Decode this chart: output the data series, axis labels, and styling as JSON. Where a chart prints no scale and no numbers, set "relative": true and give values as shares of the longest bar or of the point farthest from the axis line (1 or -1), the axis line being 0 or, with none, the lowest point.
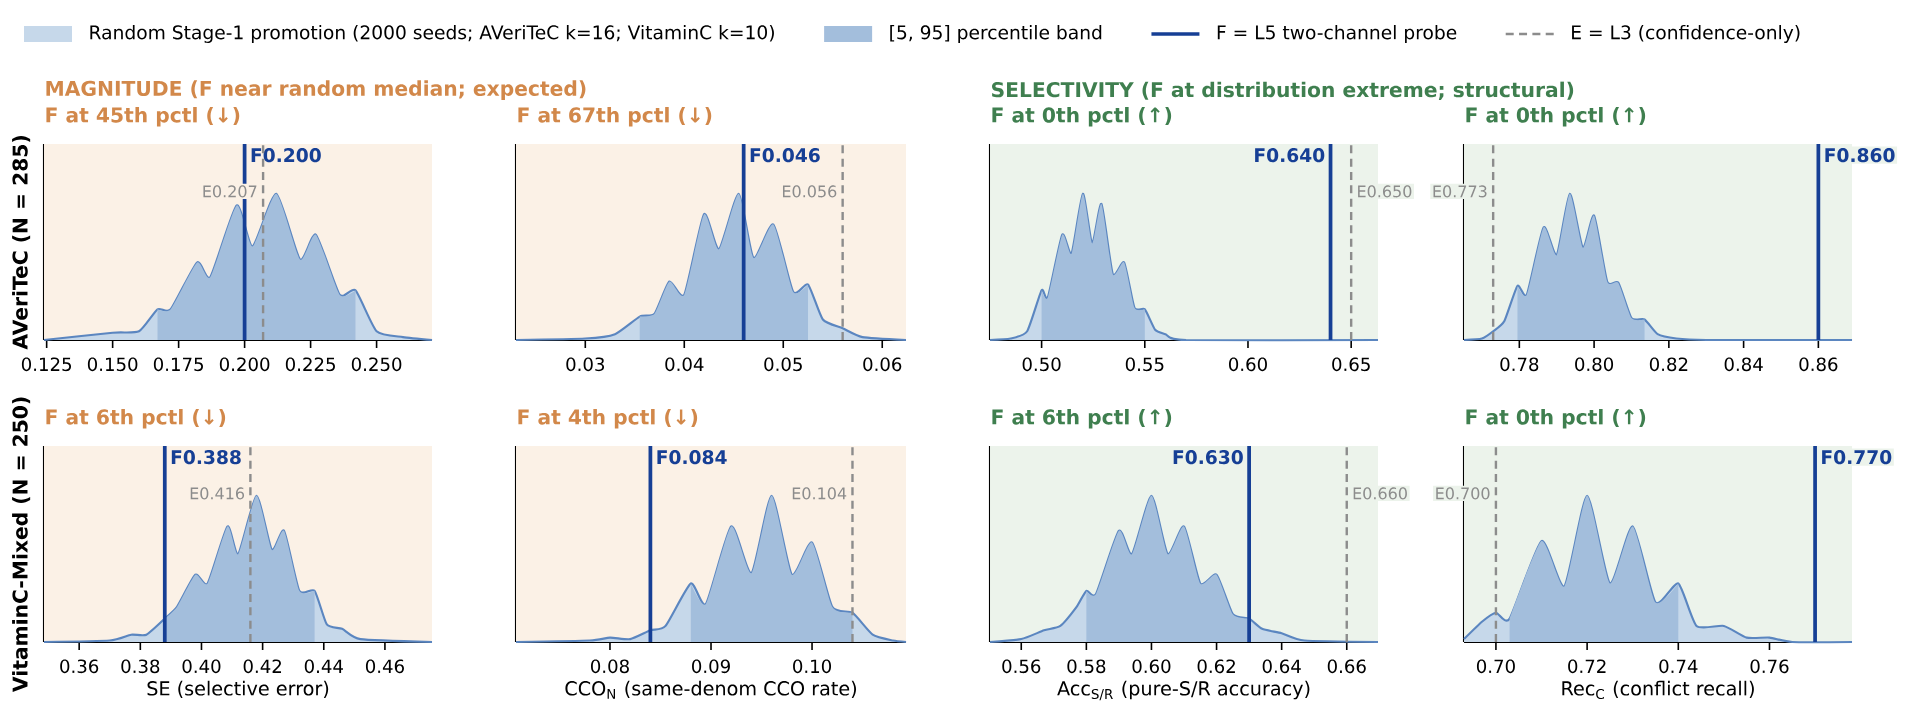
{
  "chart_data": [
    {
      "type": "area",
      "relative": true,
      "title": "F at 45th pctl (↓)",
      "subtitle": "MAGNITUDE  (F near random median; expected)",
      "ylabel": "AVeriTeC (N = 285)",
      "legend": "top",
      "annotations": [
        "F = L5 two-channel probe",
        "E = L3 (confidence-only)"
      ],
      "xlim": [
        0.124,
        0.271
      ],
      "xticks": [
        0.125,
        {
          "value": 0.15,
          "label": "0.150"
        },
        0.175,
        {
          "value": 0.2,
          "label": "0.200"
        },
        0.225,
        {
          "value": 0.25,
          "label": "0.250"
        }
      ],
      "bands": [
        {
          "axis": "x",
          "from": 0.124,
          "to": 0.271,
          "color": "#fbf1e6"
        }
      ],
      "series": [
        {
          "name": "Random Stage-1 promotion (2000 seeds; AVeriTeC k=16; VitaminC k=10)",
          "color": "#c6d8ea",
          "x": [
            0.124,
            0.15,
            0.16,
            0.167,
            0.172,
            0.182,
            0.187,
            0.197,
            0.203,
            0.212,
            0.221,
            0.227,
            0.236,
            0.242,
            0.25,
            0.26,
            0.271
          ],
          "values": [
            0,
            0.05,
            0.06,
            0.21,
            0.21,
            0.53,
            0.43,
            0.92,
            0.64,
            1.0,
            0.55,
            0.72,
            0.31,
            0.34,
            0.06,
            0.02,
            0
          ]
        },
        {
          "name": "[5, 95] percentile band",
          "color": "#a3bedc",
          "x": [
            0.167,
            0.172,
            0.182,
            0.187,
            0.197,
            0.203,
            0.212,
            0.221,
            0.227,
            0.236,
            0.242
          ],
          "values": [
            0.21,
            0.21,
            0.53,
            0.43,
            0.92,
            0.64,
            1.0,
            0.55,
            0.72,
            0.31,
            0.34
          ]
        }
      ],
      "ref_lines": [
        {
          "axis": "x",
          "value": 0.2,
          "label": "F0.200",
          "color": "#163f95",
          "line_style": "solid"
        },
        {
          "axis": "x",
          "value": 0.207,
          "label": "E0.207",
          "color": "#8c8c8c",
          "line_style": "dashed"
        }
      ]
    },
    {
      "type": "area",
      "relative": true,
      "title": "F at 67th pctl (↓)",
      "xlim": [
        0.023,
        0.0624
      ],
      "xticks": [
        0.03,
        0.04,
        0.05,
        0.06
      ],
      "bands": [
        {
          "axis": "x",
          "from": 0.023,
          "to": 0.0624,
          "color": "#fbf1e6"
        }
      ],
      "series": [
        {
          "color": "#c6d8ea",
          "x": [
            0.023,
            0.03,
            0.033,
            0.0355,
            0.037,
            0.0385,
            0.04,
            0.042,
            0.0435,
            0.0455,
            0.047,
            0.049,
            0.051,
            0.0525,
            0.054,
            0.056,
            0.058,
            0.0624
          ],
          "values": [
            0,
            0.01,
            0.04,
            0.16,
            0.18,
            0.4,
            0.31,
            0.86,
            0.62,
            1.0,
            0.56,
            0.79,
            0.33,
            0.38,
            0.14,
            0.08,
            0.02,
            0
          ]
        },
        {
          "color": "#a3bedc",
          "x": [
            0.0355,
            0.037,
            0.0385,
            0.04,
            0.042,
            0.0435,
            0.0455,
            0.047,
            0.049,
            0.051,
            0.0525
          ],
          "values": [
            0.16,
            0.18,
            0.4,
            0.31,
            0.86,
            0.62,
            1.0,
            0.56,
            0.79,
            0.33,
            0.38
          ]
        }
      ],
      "ref_lines": [
        {
          "axis": "x",
          "value": 0.046,
          "label": "F0.046",
          "color": "#163f95",
          "line_style": "solid"
        },
        {
          "axis": "x",
          "value": 0.056,
          "label": "E0.056",
          "color": "#8c8c8c",
          "line_style": "dashed"
        }
      ]
    },
    {
      "type": "area",
      "relative": true,
      "title": "F at 0th pctl (↑)",
      "subtitle": "SELECTIVITY  (F at distribution extreme; structural)",
      "xlim": [
        0.475,
        0.663
      ],
      "xticks": [
        {
          "value": 0.5,
          "label": "0.50"
        },
        0.55,
        {
          "value": 0.6,
          "label": "0.60"
        },
        0.65
      ],
      "bands": [
        {
          "axis": "x",
          "from": 0.475,
          "to": 0.663,
          "color": "#ecf3eb"
        }
      ],
      "series": [
        {
          "color": "#c6d8ea",
          "x": [
            0.475,
            0.485,
            0.493,
            0.5,
            0.503,
            0.51,
            0.5145,
            0.52,
            0.5245,
            0.529,
            0.5345,
            0.54,
            0.545,
            0.55,
            0.555,
            0.56,
            0.57,
            0.663
          ],
          "values": [
            0,
            0.01,
            0.06,
            0.34,
            0.29,
            0.72,
            0.59,
            1.0,
            0.66,
            0.93,
            0.45,
            0.53,
            0.22,
            0.21,
            0.07,
            0.04,
            0,
            0
          ]
        },
        {
          "color": "#a3bedc",
          "x": [
            0.5,
            0.503,
            0.51,
            0.5145,
            0.52,
            0.5245,
            0.529,
            0.5345,
            0.54,
            0.545,
            0.55
          ],
          "values": [
            0.34,
            0.29,
            0.72,
            0.59,
            1.0,
            0.66,
            0.93,
            0.45,
            0.53,
            0.22,
            0.21
          ]
        }
      ],
      "ref_lines": [
        {
          "axis": "x",
          "value": 0.64,
          "label": "F0.640",
          "color": "#163f95",
          "line_style": "solid"
        },
        {
          "axis": "x",
          "value": 0.65,
          "label": "E0.650",
          "color": "#8c8c8c",
          "line_style": "dashed"
        }
      ]
    },
    {
      "type": "area",
      "relative": true,
      "title": "F at 0th pctl (↑)",
      "xlim": [
        0.7652,
        0.869
      ],
      "xticks": [
        0.78,
        {
          "value": 0.8,
          "label": "0.80"
        },
        0.82,
        0.84,
        0.86
      ],
      "bands": [
        {
          "axis": "x",
          "from": 0.7652,
          "to": 0.869,
          "color": "#ecf3eb"
        }
      ],
      "series": [
        {
          "color": "#c6d8ea",
          "x": [
            0.7652,
            0.77,
            0.773,
            0.776,
            0.7795,
            0.782,
            0.7865,
            0.79,
            0.7935,
            0.797,
            0.8,
            0.8035,
            0.8065,
            0.81,
            0.8135,
            0.817,
            0.822,
            0.83,
            0.869
          ],
          "values": [
            0,
            0.01,
            0.06,
            0.13,
            0.37,
            0.31,
            0.77,
            0.58,
            1.0,
            0.63,
            0.85,
            0.4,
            0.39,
            0.15,
            0.14,
            0.04,
            0.01,
            0,
            0
          ]
        },
        {
          "color": "#a3bedc",
          "x": [
            0.7795,
            0.782,
            0.7865,
            0.79,
            0.7935,
            0.797,
            0.8,
            0.8035,
            0.8065,
            0.81,
            0.8135
          ],
          "values": [
            0.37,
            0.31,
            0.77,
            0.58,
            1.0,
            0.63,
            0.85,
            0.4,
            0.39,
            0.15,
            0.14
          ]
        }
      ],
      "ref_lines": [
        {
          "axis": "x",
          "value": 0.86,
          "label": "F0.860",
          "color": "#163f95",
          "line_style": "solid"
        },
        {
          "axis": "x",
          "value": 0.773,
          "label": "E0.773",
          "color": "#8c8c8c",
          "line_style": "dashed"
        }
      ]
    },
    {
      "type": "area",
      "relative": true,
      "title": "F at 6th pctl (↓)",
      "ylabel": "VitaminC-Mixed (N = 250)",
      "xlabel": "SE  (selective error)",
      "xlim": [
        0.3485,
        0.4754
      ],
      "xticks": [
        0.36,
        0.38,
        {
          "value": 0.4,
          "label": "0.40"
        },
        0.42,
        0.44,
        0.46
      ],
      "bands": [
        {
          "axis": "x",
          "from": 0.3485,
          "to": 0.4754,
          "color": "#fbf1e6"
        }
      ],
      "series": [
        {
          "color": "#c6d8ea",
          "x": [
            0.3485,
            0.37,
            0.377,
            0.382,
            0.388,
            0.392,
            0.398,
            0.402,
            0.4085,
            0.412,
            0.418,
            0.423,
            0.427,
            0.432,
            0.437,
            0.441,
            0.446,
            0.452,
            0.4754
          ],
          "values": [
            0,
            0.01,
            0.05,
            0.05,
            0.16,
            0.24,
            0.46,
            0.4,
            0.79,
            0.6,
            1.0,
            0.63,
            0.76,
            0.35,
            0.35,
            0.12,
            0.09,
            0.02,
            0
          ]
        },
        {
          "color": "#a3bedc",
          "x": [
            0.388,
            0.392,
            0.398,
            0.402,
            0.4085,
            0.412,
            0.418,
            0.423,
            0.427,
            0.432,
            0.437
          ],
          "values": [
            0.16,
            0.24,
            0.46,
            0.4,
            0.79,
            0.6,
            1.0,
            0.63,
            0.76,
            0.35,
            0.35
          ]
        }
      ],
      "ref_lines": [
        {
          "axis": "x",
          "value": 0.388,
          "label": "F0.388",
          "color": "#163f95",
          "line_style": "solid"
        },
        {
          "axis": "x",
          "value": 0.416,
          "label": "E0.416",
          "color": "#8c8c8c",
          "line_style": "dashed"
        }
      ]
    },
    {
      "type": "area",
      "relative": true,
      "title": "F at 4th pctl (↓)",
      "xlabel": "CCO$_{N}$  (same-denom CCO rate)",
      "xlim": [
        0.0707,
        0.1093
      ],
      "xticks": [
        0.08,
        0.09,
        {
          "value": 0.1,
          "label": "0.10"
        }
      ],
      "bands": [
        {
          "axis": "x",
          "from": 0.0707,
          "to": 0.1093,
          "color": "#fbf1e6"
        }
      ],
      "series": [
        {
          "color": "#c6d8ea",
          "x": [
            0.0707,
            0.078,
            0.08,
            0.082,
            0.084,
            0.0855,
            0.088,
            0.0895,
            0.092,
            0.094,
            0.096,
            0.098,
            0.1,
            0.102,
            0.104,
            0.106,
            0.108,
            0.1093
          ],
          "values": [
            0,
            0.01,
            0.03,
            0.02,
            0.08,
            0.11,
            0.4,
            0.26,
            0.79,
            0.47,
            1.0,
            0.46,
            0.68,
            0.24,
            0.2,
            0.05,
            0.01,
            0
          ]
        },
        {
          "color": "#a3bedc",
          "x": [
            0.088,
            0.0895,
            0.092,
            0.094,
            0.096,
            0.098,
            0.1,
            0.102,
            0.104
          ],
          "values": [
            0.4,
            0.26,
            0.79,
            0.47,
            1.0,
            0.46,
            0.68,
            0.24,
            0.2
          ]
        }
      ],
      "ref_lines": [
        {
          "axis": "x",
          "value": 0.084,
          "label": "F0.084",
          "color": "#163f95",
          "line_style": "solid"
        },
        {
          "axis": "x",
          "value": 0.104,
          "label": "E0.104",
          "color": "#8c8c8c",
          "line_style": "dashed"
        }
      ]
    },
    {
      "type": "area",
      "relative": true,
      "title": "F at 6th pctl (↑)",
      "xlabel": "Acc$_{S/R}$  (pure-S/R accuracy)",
      "xlim": [
        0.5504,
        0.6696
      ],
      "xticks": [
        0.56,
        0.58,
        {
          "value": 0.6,
          "label": "0.60"
        },
        0.62,
        0.64,
        0.66
      ],
      "bands": [
        {
          "axis": "x",
          "from": 0.5504,
          "to": 0.6696,
          "color": "#ecf3eb"
        }
      ],
      "series": [
        {
          "color": "#c6d8ea",
          "x": [
            0.5504,
            0.56,
            0.567,
            0.572,
            0.577,
            0.58,
            0.583,
            0.59,
            0.594,
            0.6,
            0.605,
            0.61,
            0.615,
            0.62,
            0.625,
            0.63,
            0.634,
            0.64,
            0.647,
            0.6696
          ],
          "values": [
            0,
            0.02,
            0.08,
            0.11,
            0.24,
            0.35,
            0.33,
            0.76,
            0.6,
            1.0,
            0.6,
            0.79,
            0.4,
            0.46,
            0.19,
            0.16,
            0.09,
            0.06,
            0.01,
            0
          ]
        },
        {
          "color": "#a3bedc",
          "x": [
            0.58,
            0.583,
            0.59,
            0.594,
            0.6,
            0.605,
            0.61,
            0.615,
            0.62,
            0.625,
            0.63
          ],
          "values": [
            0.35,
            0.33,
            0.76,
            0.6,
            1.0,
            0.6,
            0.79,
            0.4,
            0.46,
            0.19,
            0.16
          ]
        }
      ],
      "ref_lines": [
        {
          "axis": "x",
          "value": 0.63,
          "label": "F0.630",
          "color": "#163f95",
          "line_style": "solid"
        },
        {
          "axis": "x",
          "value": 0.66,
          "label": "E0.660",
          "color": "#8c8c8c",
          "line_style": "dashed"
        }
      ]
    },
    {
      "type": "area",
      "relative": true,
      "title": "F at 0th pctl (↑)",
      "xlabel": "Rec$_{C}$  (conflict recall)",
      "xlim": [
        0.693,
        0.7781
      ],
      "xticks": [
        {
          "value": 0.7,
          "label": "0.70"
        },
        0.72,
        0.74,
        0.76
      ],
      "bands": [
        {
          "axis": "x",
          "from": 0.693,
          "to": 0.7781,
          "color": "#ecf3eb"
        }
      ],
      "series": [
        {
          "color": "#c6d8ea",
          "x": [
            0.693,
            0.697,
            0.7,
            0.703,
            0.71,
            0.715,
            0.72,
            0.725,
            0.73,
            0.735,
            0.74,
            0.744,
            0.75,
            0.755,
            0.76,
            0.765,
            0.7781
          ],
          "values": [
            0.02,
            0.14,
            0.2,
            0.16,
            0.69,
            0.38,
            1.0,
            0.4,
            0.79,
            0.27,
            0.4,
            0.11,
            0.11,
            0.03,
            0.03,
            0,
            0
          ]
        },
        {
          "color": "#a3bedc",
          "x": [
            0.703,
            0.71,
            0.715,
            0.72,
            0.725,
            0.73,
            0.735,
            0.74
          ],
          "values": [
            0.16,
            0.69,
            0.38,
            1.0,
            0.4,
            0.79,
            0.27,
            0.4
          ]
        }
      ],
      "ref_lines": [
        {
          "axis": "x",
          "value": 0.77,
          "label": "F0.770",
          "color": "#163f95",
          "line_style": "solid"
        },
        {
          "axis": "x",
          "value": 0.7,
          "label": "E0.700",
          "color": "#8c8c8c",
          "line_style": "dashed"
        }
      ]
    }
  ]
}
